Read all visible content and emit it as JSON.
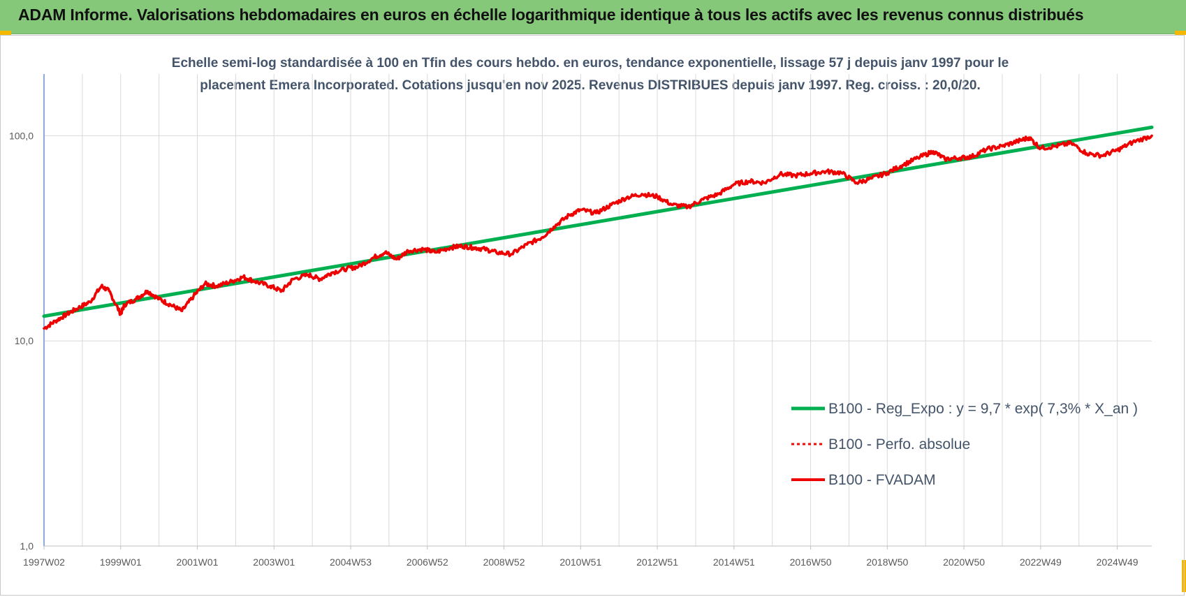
{
  "header": {
    "title": "ADAM Informe. Valorisations hebdomadaires en euros en échelle logarithmique identique à tous les actifs avec les revenus connus distribués"
  },
  "colors": {
    "banner": "#85c87a",
    "regression": "#00b050",
    "perfo": "#ff0000",
    "fvadam": "#ee0000",
    "grid": "#d9d9d9",
    "axis": "#4472c4"
  },
  "chart_data": {
    "type": "line",
    "title": "",
    "subtitle_lines": [
      "Echelle semi-log standardisée à 100 en Tfin des cours hebdo. en euros, tendance exponentielle, lissage 57 j depuis janv 1997 pour le",
      "placement Emera Incorporated. Cotations jusqu'en nov 2025.  Revenus DISTRIBUES depuis janv 1997.  Reg. croiss. : 20,0/20."
    ],
    "xlabel": "",
    "ylabel": "",
    "yscale": "log",
    "ylim": [
      1,
      200
    ],
    "xlim": [
      1997.0,
      2025.9
    ],
    "grid": true,
    "yticks": [
      {
        "value": 1,
        "label": "1,0"
      },
      {
        "value": 10,
        "label": "10,0"
      },
      {
        "value": 100,
        "label": "100,0"
      }
    ],
    "xticks": [
      {
        "value": 1997.0,
        "label": "1997W02"
      },
      {
        "value": 1999.0,
        "label": "1999W01"
      },
      {
        "value": 2001.0,
        "label": "2001W01"
      },
      {
        "value": 2003.0,
        "label": "2003W01"
      },
      {
        "value": 2005.0,
        "label": "2004W53"
      },
      {
        "value": 2007.0,
        "label": "2006W52"
      },
      {
        "value": 2009.0,
        "label": "2008W52"
      },
      {
        "value": 2011.0,
        "label": "2010W51"
      },
      {
        "value": 2013.0,
        "label": "2012W51"
      },
      {
        "value": 2015.0,
        "label": "2014W51"
      },
      {
        "value": 2017.0,
        "label": "2016W50"
      },
      {
        "value": 2019.0,
        "label": "2018W50"
      },
      {
        "value": 2021.0,
        "label": "2020W50"
      },
      {
        "value": 2023.0,
        "label": "2022W49"
      },
      {
        "value": 2025.0,
        "label": "2024W49"
      }
    ],
    "legend_position": "bottom-right",
    "series": [
      {
        "name": "B100 - Reg_Expo : y = 9,7 * exp( 7,3% *  X_an )",
        "style": "solid",
        "x": [
          1997.0,
          2025.9
        ],
        "y": [
          13.2,
          110
        ]
      },
      {
        "name": "B100 - Perfo. absolue",
        "style": "dotted",
        "x": [],
        "y": []
      },
      {
        "name": "B100 - FVADAM",
        "style": "solid",
        "x": [
          1997.0,
          1997.3,
          1997.6,
          1997.9,
          1998.2,
          1998.5,
          1998.7,
          1999.0,
          1999.1,
          1999.4,
          1999.7,
          2000.0,
          2000.3,
          2000.6,
          2000.9,
          2001.2,
          2001.5,
          2001.9,
          2002.2,
          2002.5,
          2002.9,
          2003.2,
          2003.5,
          2003.9,
          2004.2,
          2004.5,
          2004.9,
          2005.2,
          2005.6,
          2005.9,
          2006.2,
          2006.5,
          2006.9,
          2007.2,
          2007.6,
          2007.9,
          2008.2,
          2008.5,
          2008.8,
          2009.2,
          2009.6,
          2010.0,
          2010.3,
          2010.7,
          2011.0,
          2011.4,
          2011.8,
          2012.2,
          2012.6,
          2013.0,
          2013.4,
          2013.8,
          2014.2,
          2014.6,
          2015.0,
          2015.4,
          2015.8,
          2016.2,
          2016.6,
          2017.0,
          2017.4,
          2017.8,
          2018.2,
          2018.6,
          2019.0,
          2019.4,
          2019.8,
          2020.2,
          2020.5,
          2020.9,
          2021.2,
          2021.6,
          2022.0,
          2022.4,
          2022.7,
          2023.0,
          2023.4,
          2023.8,
          2024.2,
          2024.6,
          2025.0,
          2025.4,
          2025.9
        ],
        "y": [
          11.5,
          12.5,
          13.5,
          14.5,
          15.5,
          18.5,
          17.5,
          13.5,
          15.0,
          16.0,
          17.5,
          16.0,
          15.0,
          14.0,
          16.5,
          19.0,
          18.5,
          19.5,
          20.5,
          19.5,
          18.5,
          17.5,
          20.0,
          21.0,
          20.0,
          21.5,
          22.5,
          23.0,
          25.5,
          27.0,
          25.0,
          27.5,
          28.0,
          27.0,
          28.5,
          29.0,
          28.5,
          28.0,
          27.0,
          26.5,
          29.5,
          32.0,
          36.0,
          41.0,
          43.5,
          42.0,
          46.0,
          50.0,
          52.0,
          50.5,
          46.0,
          45.0,
          49.0,
          52.0,
          58.0,
          60.0,
          59.0,
          65.0,
          64.0,
          65.5,
          67.0,
          66.0,
          59.0,
          62.0,
          66.0,
          72.0,
          78.0,
          84.0,
          77.0,
          78.0,
          79.0,
          86.0,
          89.0,
          94.0,
          98.0,
          87.0,
          89.0,
          92.0,
          82.0,
          80.0,
          85.0,
          93.0,
          100.0
        ]
      }
    ]
  }
}
